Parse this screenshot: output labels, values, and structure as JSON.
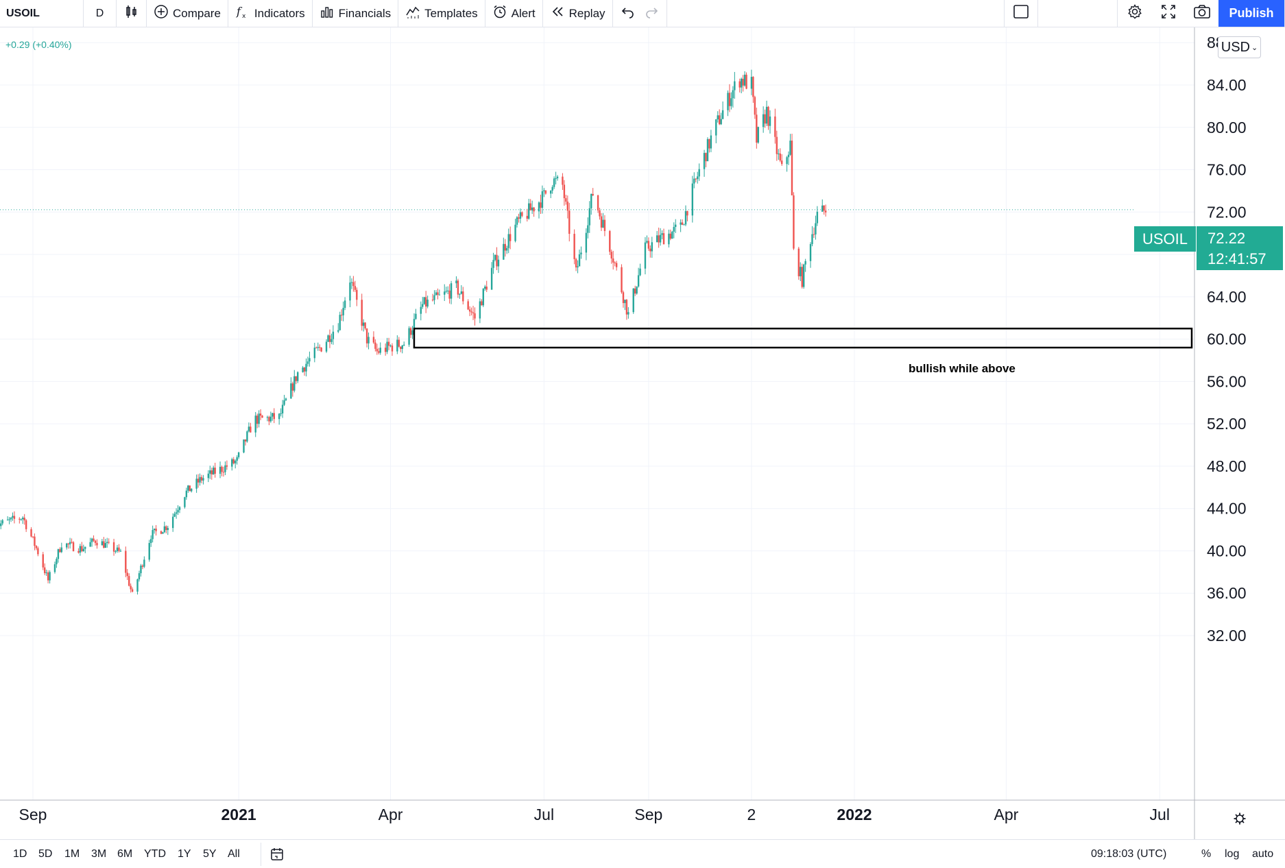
{
  "toolbar": {
    "symbol": "USOIL",
    "interval": "D",
    "compare": "Compare",
    "indicators": "Indicators",
    "financials": "Financials",
    "templates": "Templates",
    "alert": "Alert",
    "replay": "Replay",
    "publish": "Publish"
  },
  "header": {
    "change": "+0.29 (+0.40%)",
    "currency": "USD"
  },
  "price_tag": {
    "symbol": "USOIL",
    "price": "72.22",
    "countdown": "12:41:57"
  },
  "annotation": {
    "text": "bullish while above"
  },
  "bottom": {
    "ranges": [
      "1D",
      "5D",
      "1M",
      "3M",
      "6M",
      "YTD",
      "1Y",
      "5Y",
      "All"
    ],
    "clock": "09:18:03 (UTC)",
    "percent": "%",
    "log": "log",
    "auto": "auto"
  },
  "colors": {
    "up": "#26a69a",
    "down": "#ef5350",
    "accent": "#2962ff",
    "tag": "#22ab94"
  },
  "chart_data": {
    "type": "candlestick",
    "symbol": "USOIL",
    "interval": "D",
    "y_axis": {
      "min": 30,
      "max": 88,
      "ticks": [
        32,
        36,
        40,
        44,
        48,
        52,
        56,
        60,
        64,
        68,
        72,
        76,
        80,
        84,
        88
      ],
      "tick_labels": [
        "32.00",
        "36.00",
        "40.00",
        "44.00",
        "48.00",
        "52.00",
        "56.00",
        "60.00",
        "64.00",
        "68.00",
        "72.00",
        "76.00",
        "80.00",
        "84.00",
        "88.00"
      ]
    },
    "x_axis": {
      "start": "2020-08-10",
      "end": "2022-07-31",
      "ticks": [
        {
          "date": "2020-09-01",
          "label": "Sep",
          "bold": false
        },
        {
          "date": "2021-01-01",
          "label": "2021",
          "bold": true
        },
        {
          "date": "2021-04-01",
          "label": "Apr",
          "bold": false
        },
        {
          "date": "2021-07-01",
          "label": "Jul",
          "bold": false
        },
        {
          "date": "2021-09-01",
          "label": "Sep",
          "bold": false
        },
        {
          "date": "2021-11-01",
          "label": "2",
          "bold": false
        },
        {
          "date": "2022-01-01",
          "label": "2022",
          "bold": true
        },
        {
          "date": "2022-04-01",
          "label": "Apr",
          "bold": false
        },
        {
          "date": "2022-07-01",
          "label": "Jul",
          "bold": false
        }
      ]
    },
    "last_price": 72.22,
    "zone": {
      "label": "bullish while above",
      "from_date": "2021-04-15",
      "to_date": "2022-07-20",
      "low": 59.2,
      "high": 61.0
    },
    "close_path": [
      [
        "2020-08-10",
        42.4
      ],
      [
        "2020-08-26",
        43.2
      ],
      [
        "2020-09-05",
        39.5
      ],
      [
        "2020-09-10",
        37.2
      ],
      [
        "2020-09-18",
        40.7
      ],
      [
        "2020-09-30",
        40.2
      ],
      [
        "2020-10-08",
        41.0
      ],
      [
        "2020-10-15",
        40.5
      ],
      [
        "2020-10-23",
        39.8
      ],
      [
        "2020-10-30",
        35.8
      ],
      [
        "2020-11-10",
        41.5
      ],
      [
        "2020-11-20",
        42.4
      ],
      [
        "2020-11-30",
        45.4
      ],
      [
        "2020-12-10",
        46.8
      ],
      [
        "2020-12-31",
        48.5
      ],
      [
        "2021-01-10",
        52.4
      ],
      [
        "2021-01-25",
        52.6
      ],
      [
        "2021-02-05",
        56.8
      ],
      [
        "2021-02-20",
        59.5
      ],
      [
        "2021-03-01",
        61.5
      ],
      [
        "2021-03-08",
        65.7
      ],
      [
        "2021-03-18",
        60.0
      ],
      [
        "2021-03-24",
        58.8
      ],
      [
        "2021-04-01",
        59.3
      ],
      [
        "2021-04-09",
        59.6
      ],
      [
        "2021-04-20",
        63.2
      ],
      [
        "2021-05-01",
        64.0
      ],
      [
        "2021-05-10",
        64.9
      ],
      [
        "2021-05-21",
        62.0
      ],
      [
        "2021-06-01",
        67.0
      ],
      [
        "2021-06-15",
        70.9
      ],
      [
        "2021-07-01",
        73.5
      ],
      [
        "2021-07-06",
        75.0
      ],
      [
        "2021-07-12",
        74.5
      ],
      [
        "2021-07-20",
        66.2
      ],
      [
        "2021-07-30",
        73.8
      ],
      [
        "2021-08-10",
        68.3
      ],
      [
        "2021-08-20",
        62.3
      ],
      [
        "2021-08-30",
        68.5
      ],
      [
        "2021-09-10",
        69.7
      ],
      [
        "2021-09-20",
        70.5
      ],
      [
        "2021-10-01",
        75.9
      ],
      [
        "2021-10-10",
        79.8
      ],
      [
        "2021-10-20",
        83.2
      ],
      [
        "2021-10-25",
        84.6
      ],
      [
        "2021-11-01",
        84.0
      ],
      [
        "2021-11-04",
        78.8
      ],
      [
        "2021-11-10",
        81.5
      ],
      [
        "2021-11-19",
        75.9
      ],
      [
        "2021-11-24",
        78.4
      ],
      [
        "2021-11-26",
        68.2
      ],
      [
        "2021-12-01",
        65.6
      ],
      [
        "2021-12-06",
        69.5
      ],
      [
        "2021-12-10",
        71.7
      ],
      [
        "2021-12-15",
        72.2
      ]
    ]
  }
}
